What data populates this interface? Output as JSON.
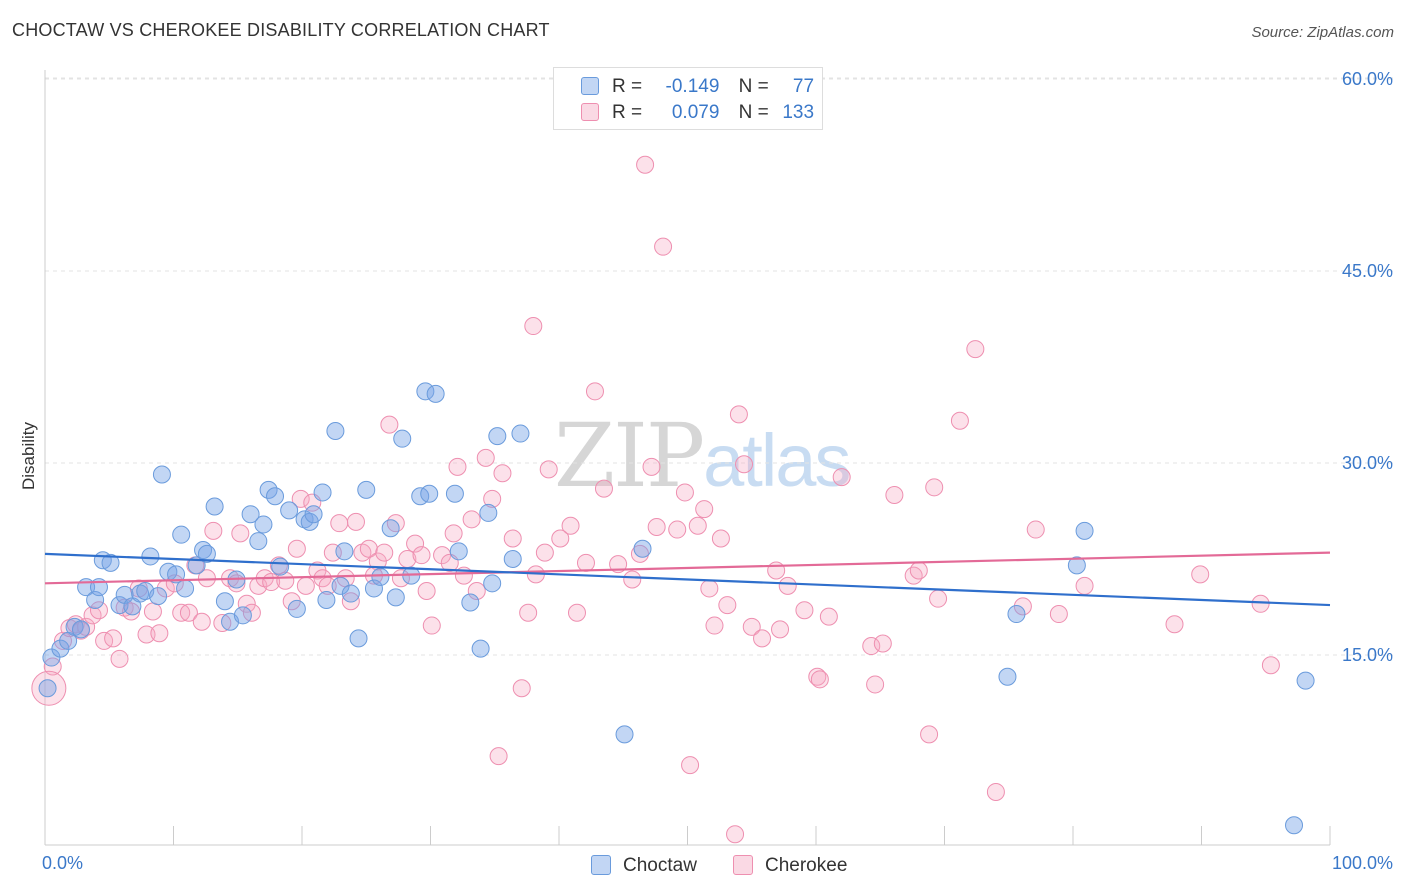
{
  "title": "CHOCTAW VS CHEROKEE DISABILITY CORRELATION CHART",
  "source": "Source: ZipAtlas.com",
  "watermark": {
    "part1": "ZIP",
    "part2": "atlas"
  },
  "stats": {
    "r_label": "R =",
    "n_label": "N =",
    "rows": [
      {
        "r": "-0.149",
        "n": "77"
      },
      {
        "r": "0.079",
        "n": "133"
      }
    ]
  },
  "legend": [
    "Choctaw",
    "Cherokee"
  ],
  "colors": {
    "choctaw_fill": "rgba(120,165,230,0.45)",
    "choctaw_stroke": "#6a9bdc",
    "choctaw_line": "#2f6fcc",
    "cherokee_fill": "rgba(245,170,195,0.35)",
    "cherokee_stroke": "#ee8fb0",
    "cherokee_line": "#e36a97",
    "tick_text": "#3a78c9"
  },
  "chart_data": {
    "type": "scatter",
    "title": "CHOCTAW VS CHEROKEE DISABILITY CORRELATION CHART",
    "xlabel": "",
    "ylabel": "Disability",
    "xlim": [
      0,
      100
    ],
    "ylim": [
      0,
      61.5
    ],
    "x_tick_labels": [
      "0.0%",
      "100.0%"
    ],
    "y_ticks": [
      15,
      30,
      45,
      60
    ],
    "y_tick_labels": [
      "15.0%",
      "30.0%",
      "45.0%",
      "60.0%"
    ],
    "grid": "horizontal dashed",
    "legend_position": "bottom",
    "series": [
      {
        "name": "Choctaw",
        "R": -0.149,
        "N": 77,
        "trend": {
          "x": [
            0,
            100
          ],
          "y": [
            22.9,
            18.9
          ]
        },
        "points": [
          [
            0.5,
            14.8
          ],
          [
            1.2,
            15.5
          ],
          [
            1.8,
            16.1
          ],
          [
            2.3,
            17.2
          ],
          [
            2.8,
            17.0
          ],
          [
            3.2,
            20.3
          ],
          [
            3.9,
            19.3
          ],
          [
            4.2,
            20.3
          ],
          [
            4.5,
            22.4
          ],
          [
            5.1,
            22.2
          ],
          [
            5.8,
            18.9
          ],
          [
            6.2,
            19.7
          ],
          [
            6.8,
            18.8
          ],
          [
            7.4,
            19.8
          ],
          [
            7.8,
            20.0
          ],
          [
            8.2,
            22.7
          ],
          [
            8.8,
            19.6
          ],
          [
            9.1,
            29.1
          ],
          [
            9.6,
            21.5
          ],
          [
            10.2,
            21.3
          ],
          [
            10.6,
            24.4
          ],
          [
            10.9,
            20.2
          ],
          [
            11.8,
            22.0
          ],
          [
            12.3,
            23.2
          ],
          [
            12.6,
            22.9
          ],
          [
            13.2,
            26.6
          ],
          [
            14.0,
            19.2
          ],
          [
            14.4,
            17.6
          ],
          [
            14.9,
            20.9
          ],
          [
            15.4,
            18.1
          ],
          [
            16.0,
            26.0
          ],
          [
            16.6,
            23.9
          ],
          [
            17.0,
            25.2
          ],
          [
            17.4,
            27.9
          ],
          [
            17.9,
            27.4
          ],
          [
            18.3,
            21.9
          ],
          [
            19.0,
            26.3
          ],
          [
            19.6,
            18.6
          ],
          [
            20.2,
            25.6
          ],
          [
            20.6,
            25.4
          ],
          [
            20.9,
            26.0
          ],
          [
            21.6,
            27.7
          ],
          [
            21.9,
            19.3
          ],
          [
            22.6,
            32.5
          ],
          [
            23.0,
            20.4
          ],
          [
            23.3,
            23.1
          ],
          [
            23.8,
            19.8
          ],
          [
            24.4,
            16.3
          ],
          [
            25.0,
            27.9
          ],
          [
            25.6,
            20.2
          ],
          [
            26.1,
            21.1
          ],
          [
            26.9,
            24.9
          ],
          [
            27.3,
            19.5
          ],
          [
            27.8,
            31.9
          ],
          [
            28.5,
            21.2
          ],
          [
            29.2,
            27.4
          ],
          [
            29.6,
            35.6
          ],
          [
            29.9,
            27.6
          ],
          [
            30.4,
            35.4
          ],
          [
            31.9,
            27.6
          ],
          [
            32.2,
            23.1
          ],
          [
            33.1,
            19.1
          ],
          [
            33.9,
            15.5
          ],
          [
            34.5,
            26.1
          ],
          [
            34.8,
            20.6
          ],
          [
            35.2,
            32.1
          ],
          [
            36.4,
            22.5
          ],
          [
            37.0,
            32.3
          ],
          [
            45.1,
            8.8
          ],
          [
            46.5,
            23.3
          ],
          [
            74.9,
            13.3
          ],
          [
            75.6,
            18.2
          ],
          [
            80.3,
            22.0
          ],
          [
            80.9,
            24.7
          ],
          [
            97.2,
            1.7
          ],
          [
            98.1,
            13.0
          ],
          [
            0.2,
            12.4
          ]
        ]
      },
      {
        "name": "Cherokee",
        "R": 0.079,
        "N": 133,
        "trend": {
          "x": [
            0,
            100
          ],
          "y": [
            20.6,
            23.0
          ]
        },
        "points": [
          [
            0.6,
            14.1
          ],
          [
            1.4,
            16.1
          ],
          [
            1.9,
            17.1
          ],
          [
            2.4,
            17.4
          ],
          [
            2.8,
            16.9
          ],
          [
            3.2,
            17.2
          ],
          [
            3.7,
            18.1
          ],
          [
            4.2,
            18.5
          ],
          [
            4.6,
            16.1
          ],
          [
            5.3,
            16.3
          ],
          [
            5.8,
            14.7
          ],
          [
            6.2,
            18.7
          ],
          [
            6.7,
            18.4
          ],
          [
            7.3,
            20.2
          ],
          [
            7.9,
            16.6
          ],
          [
            8.4,
            18.4
          ],
          [
            8.9,
            16.7
          ],
          [
            9.4,
            20.2
          ],
          [
            10.1,
            20.6
          ],
          [
            10.6,
            18.3
          ],
          [
            11.2,
            18.3
          ],
          [
            11.7,
            22.0
          ],
          [
            12.2,
            17.6
          ],
          [
            12.6,
            21.0
          ],
          [
            13.1,
            24.7
          ],
          [
            13.8,
            17.5
          ],
          [
            14.4,
            21.0
          ],
          [
            14.9,
            20.6
          ],
          [
            15.2,
            24.5
          ],
          [
            15.7,
            19.0
          ],
          [
            16.1,
            18.3
          ],
          [
            16.6,
            20.4
          ],
          [
            17.1,
            21.0
          ],
          [
            17.6,
            20.7
          ],
          [
            18.2,
            22.0
          ],
          [
            18.7,
            20.8
          ],
          [
            19.2,
            19.2
          ],
          [
            19.6,
            23.3
          ],
          [
            19.9,
            27.2
          ],
          [
            20.3,
            20.4
          ],
          [
            20.8,
            26.9
          ],
          [
            21.2,
            21.6
          ],
          [
            21.6,
            21.0
          ],
          [
            22.0,
            20.4
          ],
          [
            22.4,
            23.0
          ],
          [
            22.9,
            25.3
          ],
          [
            23.4,
            21.0
          ],
          [
            23.8,
            19.2
          ],
          [
            24.2,
            25.4
          ],
          [
            24.7,
            23.0
          ],
          [
            25.2,
            23.3
          ],
          [
            25.6,
            21.2
          ],
          [
            25.9,
            22.3
          ],
          [
            26.4,
            23.0
          ],
          [
            26.8,
            33.0
          ],
          [
            27.3,
            25.3
          ],
          [
            27.7,
            21.0
          ],
          [
            28.2,
            22.5
          ],
          [
            28.8,
            23.7
          ],
          [
            29.3,
            22.8
          ],
          [
            29.7,
            20.0
          ],
          [
            30.1,
            17.3
          ],
          [
            30.9,
            22.8
          ],
          [
            31.5,
            22.2
          ],
          [
            31.8,
            24.5
          ],
          [
            32.1,
            29.7
          ],
          [
            32.6,
            21.2
          ],
          [
            33.2,
            25.6
          ],
          [
            33.6,
            20.0
          ],
          [
            34.3,
            30.4
          ],
          [
            34.8,
            27.2
          ],
          [
            35.3,
            7.1
          ],
          [
            35.6,
            29.2
          ],
          [
            36.4,
            24.1
          ],
          [
            37.1,
            12.4
          ],
          [
            37.6,
            18.3
          ],
          [
            38.2,
            21.3
          ],
          [
            38.9,
            23.0
          ],
          [
            39.2,
            29.5
          ],
          [
            40.1,
            24.1
          ],
          [
            40.9,
            25.1
          ],
          [
            41.4,
            18.3
          ],
          [
            42.1,
            22.2
          ],
          [
            42.8,
            35.6
          ],
          [
            43.5,
            28.0
          ],
          [
            44.6,
            22.1
          ],
          [
            45.7,
            20.9
          ],
          [
            46.3,
            22.9
          ],
          [
            46.7,
            53.3
          ],
          [
            47.2,
            29.7
          ],
          [
            47.6,
            25.0
          ],
          [
            48.1,
            46.9
          ],
          [
            49.2,
            24.8
          ],
          [
            49.8,
            27.7
          ],
          [
            50.2,
            6.4
          ],
          [
            50.8,
            25.1
          ],
          [
            51.3,
            26.4
          ],
          [
            51.7,
            20.2
          ],
          [
            52.1,
            17.3
          ],
          [
            52.6,
            24.1
          ],
          [
            53.1,
            18.9
          ],
          [
            53.7,
            1.0
          ],
          [
            54.0,
            33.8
          ],
          [
            54.4,
            29.9
          ],
          [
            55.0,
            17.2
          ],
          [
            55.8,
            16.3
          ],
          [
            56.9,
            21.6
          ],
          [
            57.2,
            17.0
          ],
          [
            57.8,
            20.4
          ],
          [
            59.1,
            18.5
          ],
          [
            60.1,
            13.3
          ],
          [
            60.3,
            13.1
          ],
          [
            61.0,
            18.0
          ],
          [
            62.0,
            28.9
          ],
          [
            64.3,
            15.7
          ],
          [
            64.6,
            12.7
          ],
          [
            65.2,
            15.9
          ],
          [
            66.1,
            27.5
          ],
          [
            67.6,
            21.2
          ],
          [
            68.0,
            21.6
          ],
          [
            68.8,
            8.8
          ],
          [
            69.2,
            28.1
          ],
          [
            69.5,
            19.4
          ],
          [
            71.2,
            33.3
          ],
          [
            72.4,
            38.9
          ],
          [
            74.0,
            4.3
          ],
          [
            76.1,
            18.8
          ],
          [
            77.1,
            24.8
          ],
          [
            78.9,
            18.2
          ],
          [
            80.9,
            20.4
          ],
          [
            87.9,
            17.4
          ],
          [
            89.9,
            21.3
          ],
          [
            94.6,
            19.0
          ],
          [
            95.4,
            14.2
          ],
          [
            38.0,
            40.7
          ]
        ]
      }
    ]
  }
}
